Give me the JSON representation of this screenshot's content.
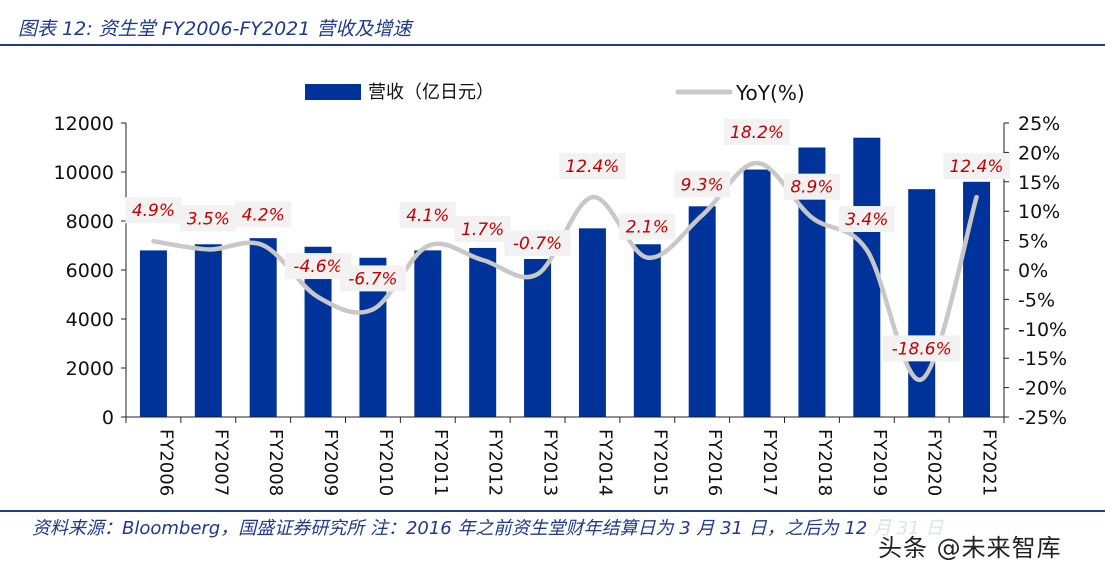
{
  "figure": {
    "title": "图表 12: 资生堂 FY2006-FY2021 营收及增速",
    "source_note": "资料来源：Bloomberg，国盛证券研究所 注：2016 年之前资生堂财年结算日为 3 月 31 日，之后为 12 月 31 日",
    "watermark": "头条 @未来智库"
  },
  "colors": {
    "accent": "#1f3a8a",
    "bar": "#003399",
    "line": "#c8c8c8",
    "label_text": "#c00000",
    "label_bg": "#f2f2f2"
  },
  "chart_data": {
    "type": "bar",
    "categories": [
      "FY2006",
      "FY2007",
      "FY2008",
      "FY2009",
      "FY2010",
      "FY2011",
      "FY2012",
      "FY2013",
      "FY2014",
      "FY2015",
      "FY2016",
      "FY2017",
      "FY2018",
      "FY2019",
      "FY2020",
      "FY2021"
    ],
    "series": [
      {
        "name": "营收（亿日元）",
        "type": "bar",
        "axis": "left",
        "values": [
          6800,
          7050,
          7300,
          6950,
          6500,
          6800,
          6900,
          6450,
          7700,
          7050,
          8600,
          10100,
          11000,
          11400,
          9300,
          9600
        ]
      },
      {
        "name": "YoY(%)",
        "type": "line",
        "axis": "right",
        "values": [
          4.9,
          3.5,
          4.2,
          -4.6,
          -6.7,
          4.1,
          1.7,
          -0.7,
          12.4,
          2.1,
          9.3,
          18.2,
          8.9,
          3.4,
          -18.6,
          12.4
        ]
      }
    ],
    "data_labels": [
      "4.9%",
      "3.5%",
      "4.2%",
      "-4.6%",
      "-6.7%",
      "4.1%",
      "1.7%",
      "-0.7%",
      "12.4%",
      "2.1%",
      "9.3%",
      "18.2%",
      "8.9%",
      "3.4%",
      "-18.6%",
      "12.4%"
    ],
    "left_axis": {
      "ylim": [
        0,
        12000
      ],
      "ticks": [
        "0",
        "2000",
        "4000",
        "6000",
        "8000",
        "10000",
        "12000"
      ]
    },
    "right_axis": {
      "ylim": [
        -25,
        25
      ],
      "ticks": [
        "-25%",
        "-20%",
        "-15%",
        "-10%",
        "-5%",
        "0%",
        "5%",
        "10%",
        "15%",
        "20%",
        "25%"
      ]
    },
    "legend": {
      "position": "top-center",
      "entries": [
        "营收（亿日元）",
        "YoY(%)"
      ]
    },
    "grid": false
  }
}
